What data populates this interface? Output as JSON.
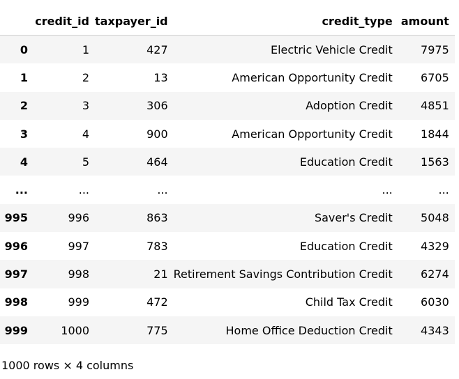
{
  "table": {
    "columns": [
      "",
      "credit_id",
      "taxpayer_id",
      "credit_type",
      "amount"
    ],
    "rows": [
      {
        "index": "0",
        "credit_id": "1",
        "taxpayer_id": "427",
        "credit_type": "Electric Vehicle Credit",
        "amount": "7975"
      },
      {
        "index": "1",
        "credit_id": "2",
        "taxpayer_id": "13",
        "credit_type": "American Opportunity Credit",
        "amount": "6705"
      },
      {
        "index": "2",
        "credit_id": "3",
        "taxpayer_id": "306",
        "credit_type": "Adoption Credit",
        "amount": "4851"
      },
      {
        "index": "3",
        "credit_id": "4",
        "taxpayer_id": "900",
        "credit_type": "American Opportunity Credit",
        "amount": "1844"
      },
      {
        "index": "4",
        "credit_id": "5",
        "taxpayer_id": "464",
        "credit_type": "Education Credit",
        "amount": "1563"
      },
      {
        "index": "...",
        "credit_id": "...",
        "taxpayer_id": "...",
        "credit_type": "...",
        "amount": "..."
      },
      {
        "index": "995",
        "credit_id": "996",
        "taxpayer_id": "863",
        "credit_type": "Saver's Credit",
        "amount": "5048"
      },
      {
        "index": "996",
        "credit_id": "997",
        "taxpayer_id": "783",
        "credit_type": "Education Credit",
        "amount": "4329"
      },
      {
        "index": "997",
        "credit_id": "998",
        "taxpayer_id": "21",
        "credit_type": "Retirement Savings Contribution Credit",
        "amount": "6274"
      },
      {
        "index": "998",
        "credit_id": "999",
        "taxpayer_id": "472",
        "credit_type": "Child Tax Credit",
        "amount": "6030"
      },
      {
        "index": "999",
        "credit_id": "1000",
        "taxpayer_id": "775",
        "credit_type": "Home Office Deduction Credit",
        "amount": "4343"
      }
    ]
  },
  "footer": {
    "shape_text": "1000 rows × 4 columns"
  },
  "colors": {
    "stripe": "#f5f5f5",
    "background": "#ffffff",
    "text": "#000000"
  }
}
